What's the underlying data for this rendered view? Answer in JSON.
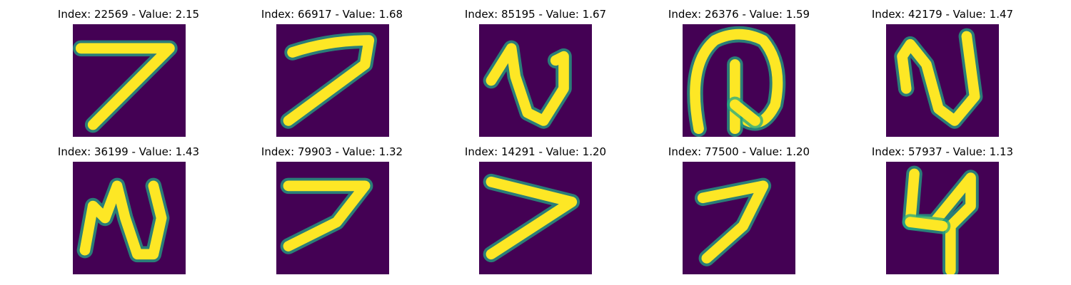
{
  "figure": {
    "colormap": "viridis",
    "background_color": "#440154",
    "foreground_color": "#fde725",
    "edge_color": "#22a884",
    "panels": [
      {
        "title": "Index: 22569 - Value: 2.15",
        "index": 22569,
        "value": 2.15,
        "glyph": "seven-like"
      },
      {
        "title": "Index: 66917 - Value: 1.68",
        "index": 66917,
        "value": 1.68,
        "glyph": "seven-like"
      },
      {
        "title": "Index: 85195 - Value: 1.67",
        "index": 85195,
        "value": 1.67,
        "glyph": "n-like"
      },
      {
        "title": "Index: 26376 - Value: 1.59",
        "index": 26376,
        "value": 1.59,
        "glyph": "at-like"
      },
      {
        "title": "Index: 42179 - Value: 1.47",
        "index": 42179,
        "value": 1.47,
        "glyph": "n-like"
      },
      {
        "title": "Index: 36199 - Value: 1.43",
        "index": 36199,
        "value": 1.43,
        "glyph": "n-like"
      },
      {
        "title": "Index: 79903 - Value: 1.32",
        "index": 79903,
        "value": 1.32,
        "glyph": "seven-like"
      },
      {
        "title": "Index: 14291 - Value: 1.20",
        "index": 14291,
        "value": 1.2,
        "glyph": "v-like"
      },
      {
        "title": "Index: 77500 - Value: 1.20",
        "index": 77500,
        "value": 1.2,
        "glyph": "seven-like"
      },
      {
        "title": "Index: 57937 - Value: 1.13",
        "index": 57937,
        "value": 1.13,
        "glyph": "four-like"
      }
    ]
  }
}
